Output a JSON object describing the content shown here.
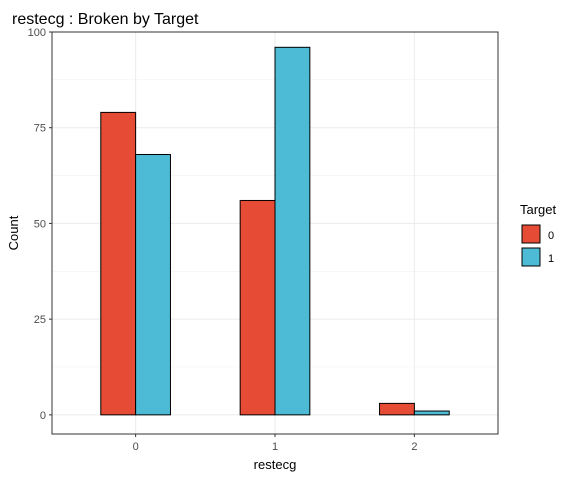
{
  "chart_data": {
    "type": "bar",
    "title": "restecg : Broken by Target",
    "xlabel": "restecg",
    "ylabel": "Count",
    "categories": [
      "0",
      "1",
      "2"
    ],
    "series": [
      {
        "name": "0",
        "color": "#E64B35",
        "values": [
          79,
          56,
          3
        ]
      },
      {
        "name": "1",
        "color": "#4DBBD5",
        "values": [
          68,
          96,
          1
        ]
      }
    ],
    "ylim": [
      -5,
      100
    ],
    "yticks": [
      0,
      25,
      50,
      75,
      100
    ],
    "yticks_labels": [
      "0",
      "25",
      "50",
      "75",
      "100"
    ],
    "grid": true,
    "legend": {
      "title": "Target",
      "placement": "right"
    }
  }
}
